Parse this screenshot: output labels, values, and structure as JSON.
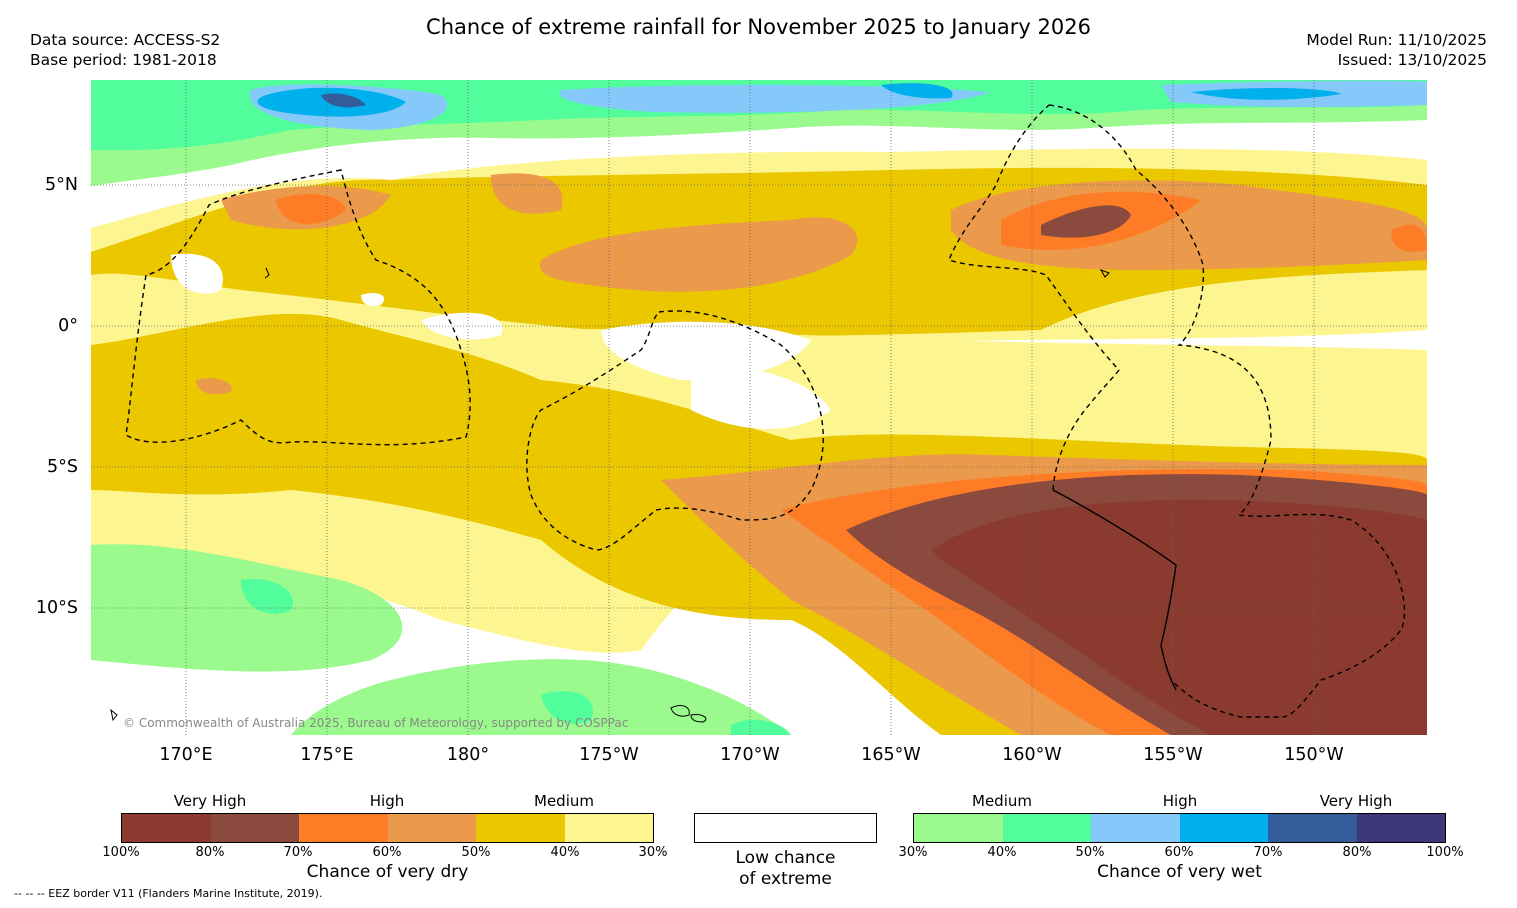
{
  "title": "Chance of extreme rainfall for November 2025 to January 2026",
  "meta_left": {
    "source": "Data source: ACCESS-S2",
    "base_period": "Base period: 1981-2018"
  },
  "meta_right": {
    "model_run": "Model Run: 11/10/2025",
    "issued": "Issued: 13/10/2025"
  },
  "map": {
    "lat_labels": [
      "5°N",
      "0°",
      "5°S",
      "10°S"
    ],
    "lon_labels": [
      "170°E",
      "175°E",
      "180°",
      "175°W",
      "170°W",
      "165°W",
      "160°W",
      "155°W",
      "150°W"
    ],
    "copyright": "© Commonwealth of Australia 2025, Bureau of Meteorology, supported by COSPPac"
  },
  "legend": {
    "dry": {
      "title": "Chance of very dry",
      "group_labels": [
        "Very High",
        "High",
        "Medium"
      ],
      "colors": [
        "#8b3a30",
        "#8a4a3d",
        "#ff7c26",
        "#eb9a4b",
        "#ebc700",
        "#fdf58f"
      ],
      "ticks": [
        "100%",
        "80%",
        "70%",
        "60%",
        "50%",
        "40%",
        "30%"
      ]
    },
    "low": {
      "line1": "Low chance",
      "line2": "of extreme",
      "color": "#ffffff"
    },
    "wet": {
      "title": "Chance of very wet",
      "group_labels": [
        "Medium",
        "High",
        "Very High"
      ],
      "colors": [
        "#9bfa8e",
        "#52fe9c",
        "#85c8fa",
        "#00b0ec",
        "#345c9a",
        "#3d3878"
      ],
      "ticks": [
        "30%",
        "40%",
        "50%",
        "60%",
        "70%",
        "80%",
        "100%"
      ]
    }
  },
  "footnote": "-- -- -- EEZ border V11 (Flanders Marine Institute, 2019)."
}
